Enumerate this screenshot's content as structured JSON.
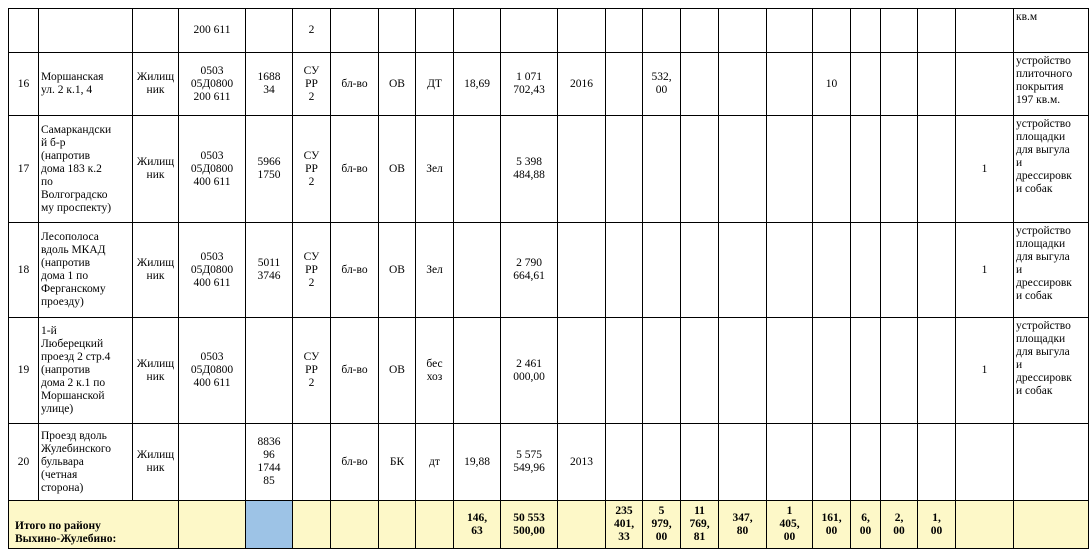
{
  "table": {
    "rows": [
      [
        null,
        null,
        null,
        "200 611",
        null,
        "2",
        null,
        null,
        null,
        null,
        null,
        null,
        null,
        null,
        null,
        null,
        null,
        null,
        null,
        null,
        null,
        null,
        "кв.м"
      ],
      [
        "16",
        "Моршанская\nул. 2 к.1, 4",
        "Жилищ\nник",
        "0503\n05Д0800\n200 611",
        "1688\n34",
        "СУ\nРР\n2",
        "бл-во",
        "ОВ",
        "ДТ",
        "18,69",
        "1 071\n702,43",
        "2016",
        null,
        "532,\n00",
        null,
        null,
        null,
        "10",
        null,
        null,
        null,
        null,
        "устройство\nплиточного\nпокрытия\n197 кв.м."
      ],
      [
        "17",
        "Самаркандски\nй б-р\n(напротив\nдома 183 к.2\nпо\nВолгоградско\nму проспекту)",
        "Жилищ\nник",
        "0503\n05Д0800\n400 611",
        "5966\n1750",
        "СУ\nРР\n2",
        "бл-во",
        "ОВ",
        "Зел",
        null,
        "5 398\n484,88",
        null,
        null,
        null,
        null,
        null,
        null,
        null,
        null,
        null,
        null,
        "1",
        "устройство\nплощадки\nдля выгула\nи\nдрессировк\nи собак"
      ],
      [
        "18",
        "Лесополоса\nвдоль МКАД\n(напротив\nдома 1 по\nФерганскому\nпроезду)",
        "Жилищ\nник",
        "0503\n05Д0800\n400 611",
        "5011\n3746",
        "СУ\nРР\n2",
        "бл-во",
        "ОВ",
        "Зел",
        null,
        "2 790\n664,61",
        null,
        null,
        null,
        null,
        null,
        null,
        null,
        null,
        null,
        null,
        "1",
        "устройство\nплощадки\nдля выгула\nи\nдрессировк\nи собак"
      ],
      [
        "19",
        "1-й\nЛюберецкий\nпроезд 2 стр.4\n(напротив\nдома 2 к.1 по\nМоршанской\nулице)",
        "Жилищ\nник",
        "0503\n05Д0800\n400 611",
        null,
        "СУ\nРР\n2",
        "бл-во",
        "ОВ",
        "бес\nхоз",
        null,
        "2 461\n000,00",
        null,
        null,
        null,
        null,
        null,
        null,
        null,
        null,
        null,
        null,
        "1",
        "устройство\nплощадки\nдля выгула\nи\nдрессировк\nи собак"
      ],
      [
        "20",
        "Проезд вдоль\nЖулебинского\nбульвара\n(четная\nсторона)",
        "Жилищ\nник",
        null,
        "8836\n96\n1744\n85",
        null,
        "бл-во",
        "БК",
        "дт",
        "19,88",
        "5 575\n549,96",
        "2013",
        null,
        null,
        null,
        null,
        null,
        null,
        null,
        null,
        null,
        null,
        null
      ]
    ],
    "total": {
      "label": "Итого по району\nВыхино-Жулебино:",
      "cells": [
        null,
        null,
        null,
        null,
        null,
        null,
        "146,\n63",
        "50 553\n500,00",
        null,
        "235\n401,\n33",
        "5\n979,\n00",
        "11\n769,\n81",
        "347,\n80",
        "1\n405,\n00",
        "161,\n00",
        "6,\n00",
        "2,\n00",
        "1,\n00",
        null,
        null
      ]
    }
  }
}
